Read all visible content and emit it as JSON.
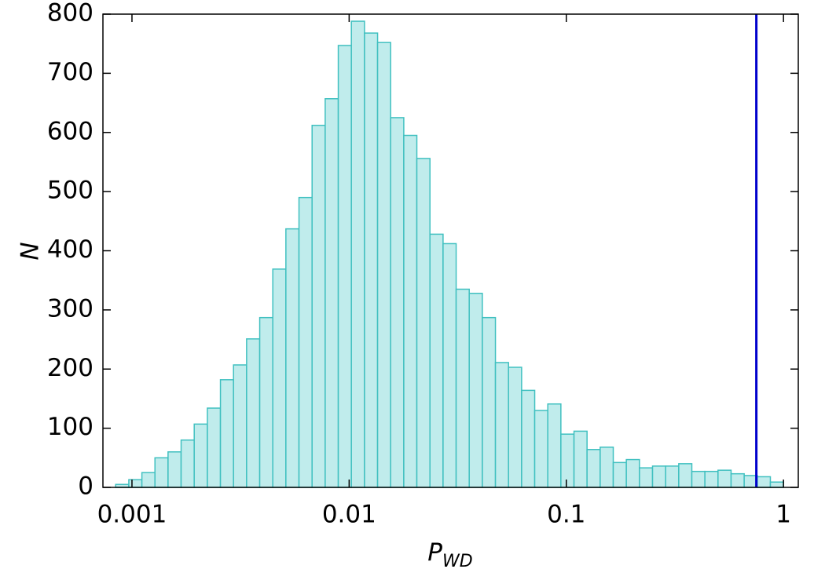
{
  "chart_data": {
    "type": "histogram",
    "xlabel": {
      "main": "P",
      "sub": "WD"
    },
    "ylabel": "N",
    "xscale": "log",
    "bins": [
      0.000841,
      0.000967,
      0.001111,
      0.001276,
      0.001466,
      0.001684,
      0.001935,
      0.002224,
      0.002555,
      0.002935,
      0.003372,
      0.003875,
      0.004452,
      0.005114,
      0.005876,
      0.006752,
      0.007757,
      0.008913,
      0.01024,
      0.01177,
      0.01352,
      0.01553,
      0.01785,
      0.0205,
      0.02356,
      0.02707,
      0.0311,
      0.03573,
      0.04105,
      0.04717,
      0.05419,
      0.06226,
      0.07153,
      0.08219,
      0.09441,
      0.1085,
      0.1246,
      0.1432,
      0.1645,
      0.189,
      0.2172,
      0.2495,
      0.2867,
      0.3294,
      0.3784,
      0.4347,
      0.4995,
      0.5739,
      0.6594,
      0.7576,
      0.8703,
      1
    ],
    "counts": [
      5,
      13,
      25,
      50,
      60,
      80,
      107,
      134,
      182,
      207,
      251,
      287,
      369,
      437,
      490,
      612,
      657,
      747,
      788,
      768,
      752,
      625,
      595,
      556,
      428,
      412,
      335,
      328,
      287,
      211,
      203,
      164,
      130,
      141,
      90,
      95,
      64,
      68,
      42,
      47,
      33,
      36,
      36,
      40,
      27,
      27,
      29,
      23,
      20,
      18,
      9
    ],
    "color": "#c0ecec",
    "edgecolor": "#40c0c0",
    "vline": {
      "value": 0.75,
      "color": "#0000cc"
    },
    "xlim": [
      0.000735,
      1.17
    ],
    "xticks": [
      0.001,
      0.01,
      0.1,
      1
    ],
    "ylim": [
      0,
      800
    ],
    "yticks": [
      0,
      100,
      200,
      300,
      400,
      500,
      600,
      700,
      800
    ]
  }
}
